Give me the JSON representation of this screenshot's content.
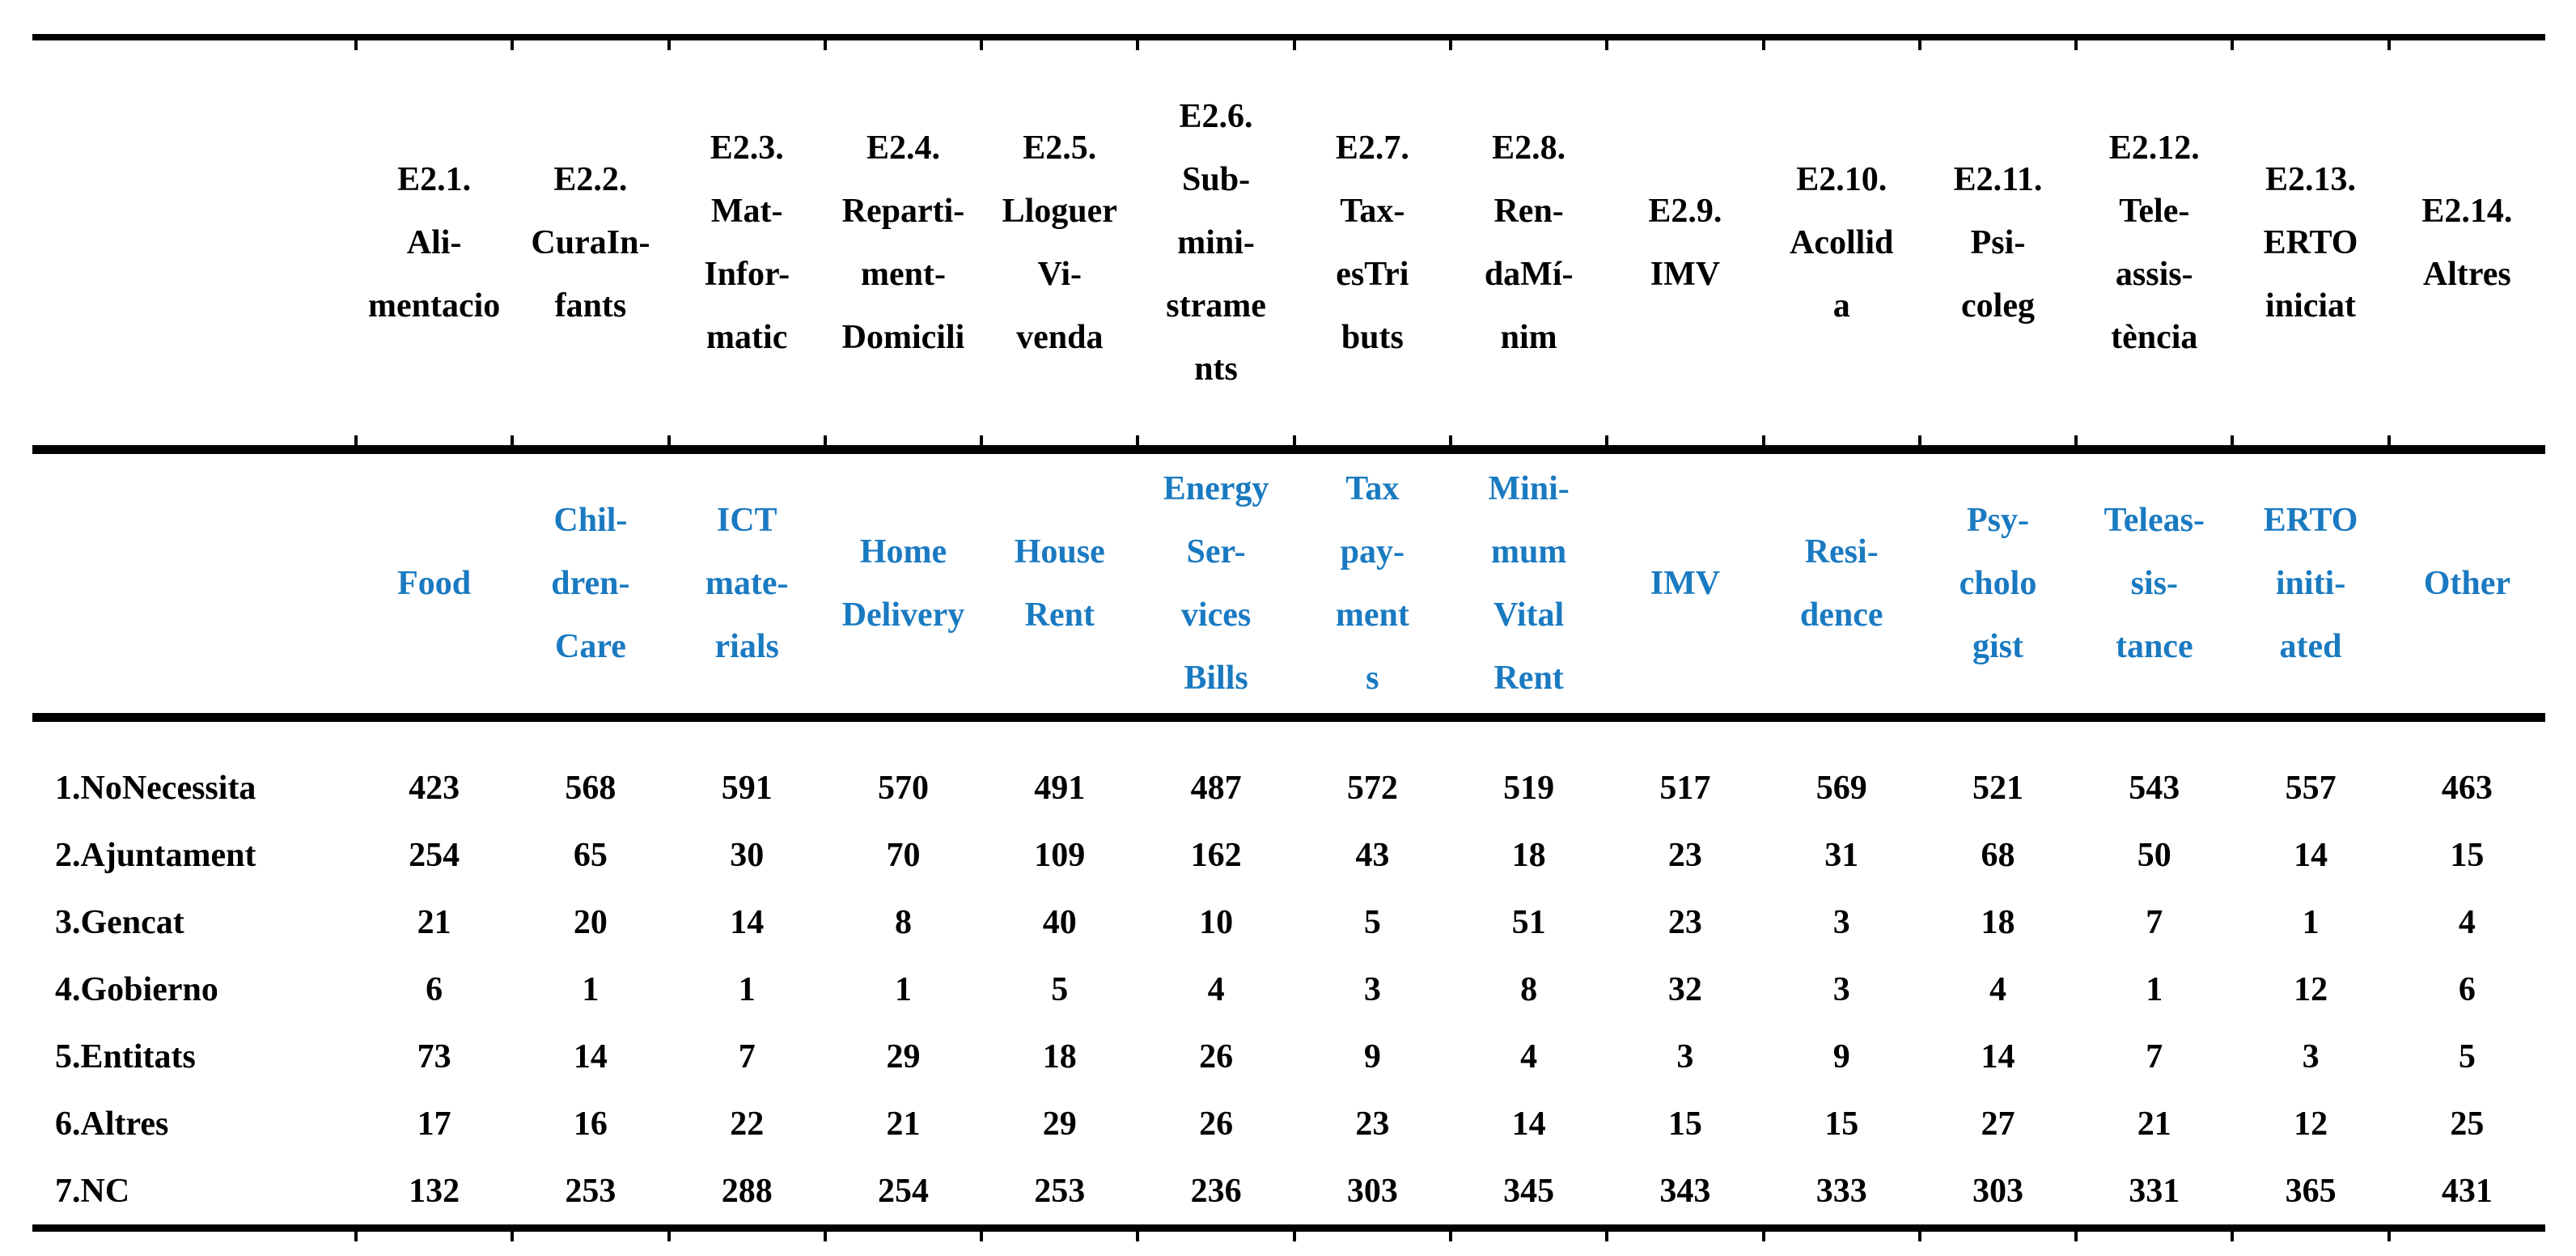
{
  "colors": {
    "english_header_text": "#1a7ac1",
    "body_text": "#000000",
    "rule_color": "#000000"
  },
  "table": {
    "header_catalan": [
      "E2.1.\nAli-\nmentacio",
      "E2.2.\nCuraIn-\nfants",
      "E2.3.\nMat-\nInfor-\nmatic",
      "E2.4.\nReparti-\nment-\nDomicili",
      "E2.5.\nLloguer\nVi-\nvenda",
      "E2.6.\nSub-\nmini-\nstrame\nnts",
      "E2.7.\nTax-\nesTri\nbuts",
      "E2.8.\nRen-\ndaMí-\nnim",
      "E2.9.\nIMV",
      "E2.10.\nAcollid\na",
      "E2.11.\nPsi-\ncoleg",
      "E2.12.\nTele-\nassis-\ntència",
      "E2.13.\nERTO\niniciat",
      "E2.14.\nAltres"
    ],
    "header_english": [
      "Food",
      "Chil-\ndren-\nCare",
      "ICT\nmate-\nrials",
      "Home\nDelivery",
      "House\nRent",
      "Energy\nSer-\nvices\nBills",
      "Tax\npay-\nment\ns",
      "Mini-\nmum\nVital\nRent",
      "IMV",
      "Resi-\ndence",
      "Psy-\ncholo\ngist",
      "Teleas-\nsis-\ntance",
      "ERTO\niniti-\nated",
      "Other"
    ],
    "rows": [
      {
        "label": "1.NoNecessita",
        "values": [
          423,
          568,
          591,
          570,
          491,
          487,
          572,
          519,
          517,
          569,
          521,
          543,
          557,
          463
        ]
      },
      {
        "label": "2.Ajuntament",
        "values": [
          254,
          65,
          30,
          70,
          109,
          162,
          43,
          18,
          23,
          31,
          68,
          50,
          14,
          15
        ]
      },
      {
        "label": "3.Gencat",
        "values": [
          21,
          20,
          14,
          8,
          40,
          10,
          5,
          51,
          23,
          3,
          18,
          7,
          1,
          4
        ]
      },
      {
        "label": "4.Gobierno",
        "values": [
          6,
          1,
          1,
          1,
          5,
          4,
          3,
          8,
          32,
          3,
          4,
          1,
          12,
          6
        ]
      },
      {
        "label": "5.Entitats",
        "values": [
          73,
          14,
          7,
          29,
          18,
          26,
          9,
          4,
          3,
          9,
          14,
          7,
          3,
          5
        ]
      },
      {
        "label": "6.Altres",
        "values": [
          17,
          16,
          22,
          21,
          29,
          26,
          23,
          14,
          15,
          15,
          27,
          21,
          12,
          25
        ]
      },
      {
        "label": "7.NC",
        "values": [
          132,
          253,
          288,
          254,
          253,
          236,
          303,
          345,
          343,
          333,
          303,
          331,
          365,
          431
        ]
      }
    ]
  }
}
